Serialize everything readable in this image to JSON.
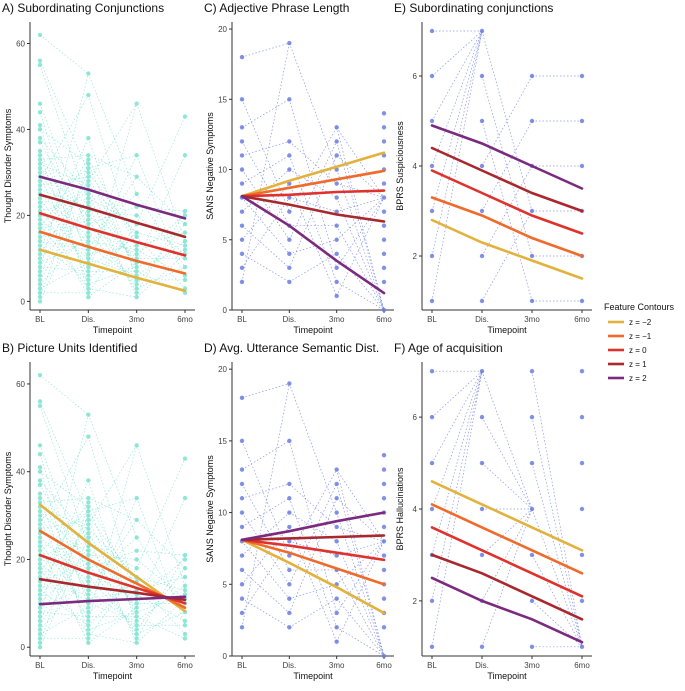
{
  "chart_data": [
    {
      "id": "A",
      "type": "line",
      "title": "A) Subordinating Conjunctions",
      "xlabel": "Timepoint",
      "ylabel": "Thought Disorder Symptoms",
      "categories": [
        "BL",
        "Dis.",
        "3mo",
        "6mo"
      ],
      "yticks": [
        0,
        20,
        40,
        60
      ],
      "ylim": [
        -2,
        65
      ],
      "points": {
        "color": "#7de3d0",
        "jitter_values": [
          [
            62,
            56,
            55,
            46,
            44,
            41,
            40,
            38,
            37,
            35,
            34,
            33,
            32,
            31,
            30,
            29,
            28,
            27,
            26,
            25,
            24,
            23,
            22,
            21,
            20,
            19,
            18,
            17,
            16,
            15,
            14,
            13,
            12,
            11,
            10,
            9,
            8,
            7,
            6,
            5,
            4,
            3,
            2,
            1,
            0
          ],
          [
            53,
            48,
            38,
            34,
            33,
            32,
            31,
            30,
            29,
            28,
            27,
            26,
            25,
            24,
            23,
            22,
            21,
            20,
            19,
            18,
            17,
            16,
            15,
            14,
            13,
            12,
            11,
            10,
            9,
            8,
            7,
            6,
            5,
            4,
            3,
            2,
            1
          ],
          [
            46,
            34,
            29,
            25,
            22,
            20,
            18,
            16,
            15,
            13,
            12,
            11,
            10,
            9,
            8,
            7,
            6,
            5,
            4,
            3,
            2,
            1
          ],
          [
            43,
            34,
            21,
            20,
            18,
            16,
            14,
            13,
            12,
            11,
            10,
            8,
            6,
            5,
            3,
            2
          ]
        ]
      },
      "series": [
        {
          "name": "z = −2",
          "values": [
            12.0,
            8.8,
            5.5,
            2.5
          ]
        },
        {
          "name": "z = −1",
          "values": [
            16.2,
            12.7,
            9.4,
            6.5
          ]
        },
        {
          "name": "z = 0",
          "values": [
            20.5,
            17.0,
            13.8,
            10.7
          ]
        },
        {
          "name": "z = 1",
          "values": [
            24.8,
            21.7,
            18.3,
            15.0
          ]
        },
        {
          "name": "z = 2",
          "values": [
            29.0,
            26.0,
            22.5,
            19.3
          ]
        }
      ]
    },
    {
      "id": "C",
      "type": "line",
      "title": "C) Adjective Phrase Length",
      "xlabel": "Timepoint",
      "ylabel": "SANS Negative Symptoms",
      "categories": [
        "BL",
        "Dis.",
        "3mo",
        "6mo"
      ],
      "yticks": [
        0,
        5,
        10,
        15,
        20
      ],
      "ylim": [
        0,
        20.5
      ],
      "points": {
        "color": "#6b7ee0",
        "jitter_values": [
          [
            18,
            15,
            13,
            12,
            11,
            10,
            9,
            8,
            7,
            6,
            5,
            4,
            3,
            2
          ],
          [
            19,
            15,
            12,
            11,
            10,
            9,
            8,
            7,
            6,
            5,
            4,
            3,
            2
          ],
          [
            13,
            12,
            11,
            10,
            9,
            8,
            7,
            6,
            5,
            4,
            3,
            2,
            1
          ],
          [
            14,
            13,
            12,
            11,
            10,
            9,
            8,
            7,
            6,
            5,
            4,
            3,
            2,
            0
          ]
        ]
      },
      "series": [
        {
          "name": "z = −2",
          "values": [
            8.1,
            9.2,
            10.2,
            11.2
          ]
        },
        {
          "name": "z = −1",
          "values": [
            8.1,
            8.7,
            9.3,
            9.9
          ]
        },
        {
          "name": "z = 0",
          "values": [
            8.1,
            8.2,
            8.4,
            8.5
          ]
        },
        {
          "name": "z = 1",
          "values": [
            8.1,
            7.5,
            6.8,
            6.3
          ]
        },
        {
          "name": "z = 2",
          "values": [
            8.1,
            6.0,
            3.5,
            1.2
          ]
        }
      ]
    },
    {
      "id": "E",
      "type": "line",
      "title": "E) Subordinating conjunctions",
      "xlabel": "Timepoint",
      "ylabel": "BPRS Suspiciousness",
      "categories": [
        "BL",
        "Dis.",
        "3mo",
        "6mo"
      ],
      "yticks": [
        2,
        4,
        6
      ],
      "ylim": [
        0.8,
        7.2
      ],
      "points": {
        "color": "#6b7ee0",
        "jitter_values": [
          [
            7,
            6,
            5,
            4,
            3,
            2,
            1
          ],
          [
            7,
            6,
            5,
            4,
            3,
            2,
            1
          ],
          [
            6,
            5,
            4,
            3,
            2,
            1
          ],
          [
            6,
            5,
            4,
            3,
            2,
            1
          ]
        ]
      },
      "series": [
        {
          "name": "z = −2",
          "values": [
            2.8,
            2.3,
            1.9,
            1.5
          ]
        },
        {
          "name": "z = −1",
          "values": [
            3.3,
            2.9,
            2.4,
            2.0
          ]
        },
        {
          "name": "z = 0",
          "values": [
            3.9,
            3.4,
            2.9,
            2.5
          ]
        },
        {
          "name": "z = 1",
          "values": [
            4.4,
            3.9,
            3.4,
            3.0
          ]
        },
        {
          "name": "z = 2",
          "values": [
            4.9,
            4.5,
            4.0,
            3.5
          ]
        }
      ]
    },
    {
      "id": "B",
      "type": "line",
      "title": "B) Picture Units Identified",
      "xlabel": "Timepoint",
      "ylabel": "Thought Disorder Symptoms",
      "categories": [
        "BL",
        "Dis.",
        "3mo",
        "6mo"
      ],
      "yticks": [
        0,
        20,
        40,
        60
      ],
      "ylim": [
        -2,
        65
      ],
      "points": {
        "color": "#7de3d0",
        "jitter_values": [
          [
            62,
            56,
            55,
            46,
            44,
            41,
            40,
            38,
            37,
            35,
            34,
            33,
            32,
            31,
            30,
            29,
            28,
            27,
            26,
            25,
            24,
            23,
            22,
            21,
            20,
            19,
            18,
            17,
            16,
            15,
            14,
            13,
            12,
            11,
            10,
            9,
            8,
            7,
            6,
            5,
            4,
            3,
            2,
            1,
            0
          ],
          [
            53,
            48,
            38,
            34,
            33,
            32,
            31,
            30,
            29,
            28,
            27,
            26,
            25,
            24,
            23,
            22,
            21,
            20,
            19,
            18,
            17,
            16,
            15,
            14,
            13,
            12,
            11,
            10,
            9,
            8,
            7,
            6,
            5,
            4,
            3,
            2,
            1
          ],
          [
            46,
            34,
            29,
            25,
            22,
            20,
            18,
            16,
            15,
            13,
            12,
            11,
            10,
            9,
            8,
            7,
            6,
            5,
            4,
            3,
            2,
            1
          ],
          [
            43,
            34,
            21,
            20,
            18,
            16,
            14,
            13,
            12,
            11,
            10,
            8,
            6,
            5,
            3,
            2
          ]
        ]
      },
      "series": [
        {
          "name": "z = −2",
          "values": [
            32.5,
            23.8,
            16.0,
            8.2
          ]
        },
        {
          "name": "z = −1",
          "values": [
            26.5,
            20.0,
            14.5,
            9.0
          ]
        },
        {
          "name": "z = 0",
          "values": [
            21.0,
            17.0,
            13.5,
            10.0
          ]
        },
        {
          "name": "z = 1",
          "values": [
            15.5,
            13.8,
            12.4,
            10.8
          ]
        },
        {
          "name": "z = 2",
          "values": [
            9.8,
            10.5,
            11.0,
            11.5
          ]
        }
      ]
    },
    {
      "id": "D",
      "type": "line",
      "title": "D) Avg. Utterance Semantic Dist.",
      "xlabel": "Timepoint",
      "ylabel": "SANS Negative Symptoms",
      "categories": [
        "BL",
        "Dis.",
        "3mo",
        "6mo"
      ],
      "yticks": [
        0,
        5,
        10,
        15,
        20
      ],
      "ylim": [
        0,
        20.5
      ],
      "points": {
        "color": "#6b7ee0",
        "jitter_values": [
          [
            18,
            15,
            13,
            12,
            11,
            10,
            9,
            8,
            7,
            6,
            5,
            4,
            3,
            2
          ],
          [
            19,
            15,
            12,
            11,
            10,
            9,
            8,
            7,
            6,
            5,
            4,
            3,
            2
          ],
          [
            13,
            12,
            11,
            10,
            9,
            8,
            7,
            6,
            5,
            4,
            3,
            2,
            1
          ],
          [
            14,
            13,
            12,
            11,
            10,
            9,
            8,
            7,
            6,
            5,
            4,
            3,
            2,
            0
          ]
        ]
      },
      "series": [
        {
          "name": "z = −2",
          "values": [
            8.1,
            6.5,
            4.8,
            3.0
          ]
        },
        {
          "name": "z = −1",
          "values": [
            8.1,
            7.2,
            6.1,
            5.0
          ]
        },
        {
          "name": "z = 0",
          "values": [
            8.1,
            7.7,
            7.2,
            6.7
          ]
        },
        {
          "name": "z = 1",
          "values": [
            8.1,
            8.2,
            8.3,
            8.4
          ]
        },
        {
          "name": "z = 2",
          "values": [
            8.1,
            8.7,
            9.4,
            10.0
          ]
        }
      ]
    },
    {
      "id": "F",
      "type": "line",
      "title": "F) Age of acquisition",
      "xlabel": "Timepoint",
      "ylabel": "BPRS Hallucinations",
      "categories": [
        "BL",
        "Dis.",
        "3mo",
        "6mo"
      ],
      "yticks": [
        2,
        4,
        6
      ],
      "ylim": [
        0.8,
        7.2
      ],
      "points": {
        "color": "#6b7ee0",
        "jitter_values": [
          [
            7,
            6,
            5,
            4,
            3,
            2,
            1
          ],
          [
            7,
            6,
            5,
            4,
            3,
            2,
            1
          ],
          [
            7,
            6,
            5,
            4,
            3,
            2,
            1
          ],
          [
            7,
            6,
            5,
            4,
            3,
            2,
            1
          ]
        ]
      },
      "series": [
        {
          "name": "z = −2",
          "values": [
            4.6,
            4.1,
            3.6,
            3.1
          ]
        },
        {
          "name": "z = −1",
          "values": [
            4.1,
            3.6,
            3.1,
            2.6
          ]
        },
        {
          "name": "z = 0",
          "values": [
            3.6,
            3.1,
            2.6,
            2.1
          ]
        },
        {
          "name": "z = 1",
          "values": [
            3.0,
            2.6,
            2.1,
            1.6
          ]
        },
        {
          "name": "z = 2",
          "values": [
            2.5,
            2.0,
            1.6,
            1.1
          ]
        }
      ]
    }
  ],
  "legend": {
    "title": "Feature Contours",
    "entries": [
      {
        "label": "z = −2",
        "color": "#e3b23c"
      },
      {
        "label": "z = −1",
        "color": "#f06a2a"
      },
      {
        "label": "z = 0",
        "color": "#e0322c"
      },
      {
        "label": "z = 1",
        "color": "#a8282e"
      },
      {
        "label": "z = 2",
        "color": "#7b2a7e"
      }
    ]
  },
  "colors": {
    "z_-2": "#e3b23c",
    "z_-1": "#f06a2a",
    "z_0": "#e0322c",
    "z_1": "#a8282e",
    "z_2": "#7b2a7e",
    "axis": "#333333"
  }
}
